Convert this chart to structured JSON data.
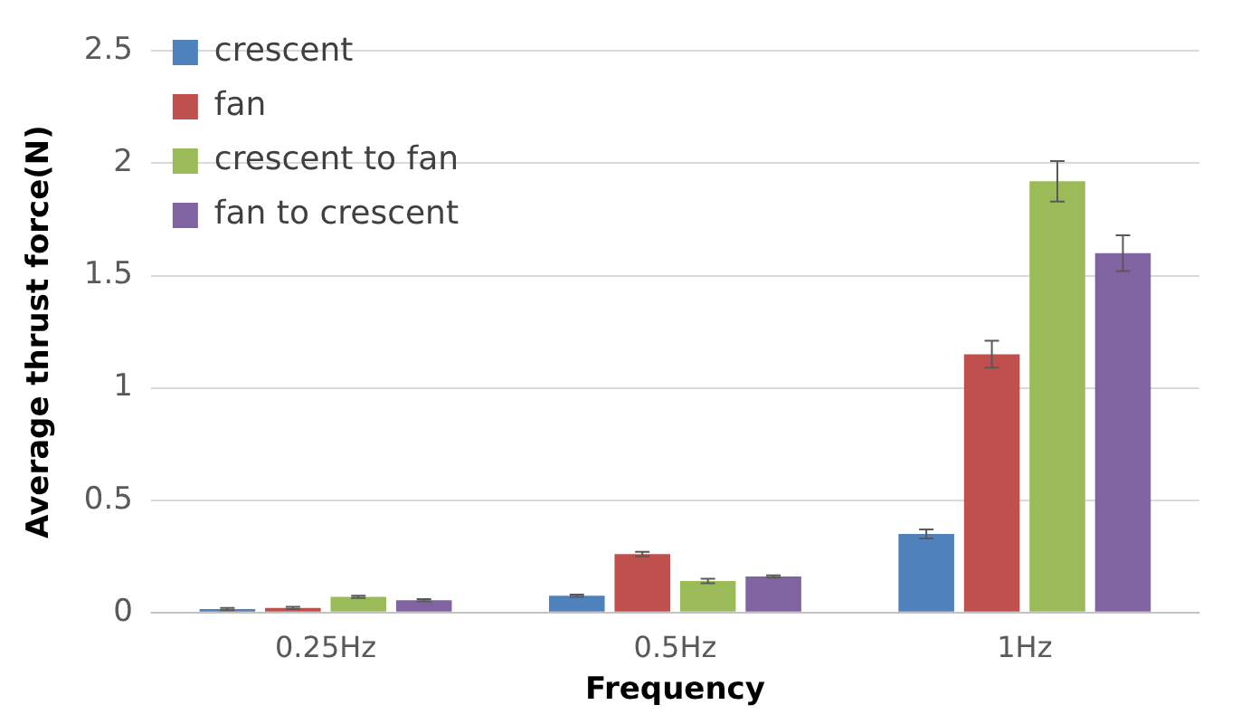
{
  "chart_data": {
    "type": "bar",
    "xlabel": "Frequency",
    "ylabel": "Average thrust force(N)",
    "categories": [
      "0.25Hz",
      "0.5Hz",
      "1Hz"
    ],
    "series": [
      {
        "name": "crescent",
        "color": "#4f81bd",
        "values": [
          0.015,
          0.075,
          0.35
        ],
        "errors": [
          0.005,
          0.005,
          0.02
        ]
      },
      {
        "name": "fan",
        "color": "#c0504d",
        "values": [
          0.02,
          0.26,
          1.15
        ],
        "errors": [
          0.005,
          0.01,
          0.06
        ]
      },
      {
        "name": "crescent to fan",
        "color": "#9bbb59",
        "values": [
          0.07,
          0.14,
          1.92
        ],
        "errors": [
          0.005,
          0.01,
          0.09
        ]
      },
      {
        "name": "fan to crescent",
        "color": "#8064a2",
        "values": [
          0.055,
          0.16,
          1.6
        ],
        "errors": [
          0.005,
          0.005,
          0.08
        ]
      }
    ],
    "ylim": [
      0,
      2.5
    ],
    "yticks": [
      0,
      0.5,
      1,
      1.5,
      2,
      2.5
    ],
    "grid": "y",
    "legend": "top left"
  }
}
